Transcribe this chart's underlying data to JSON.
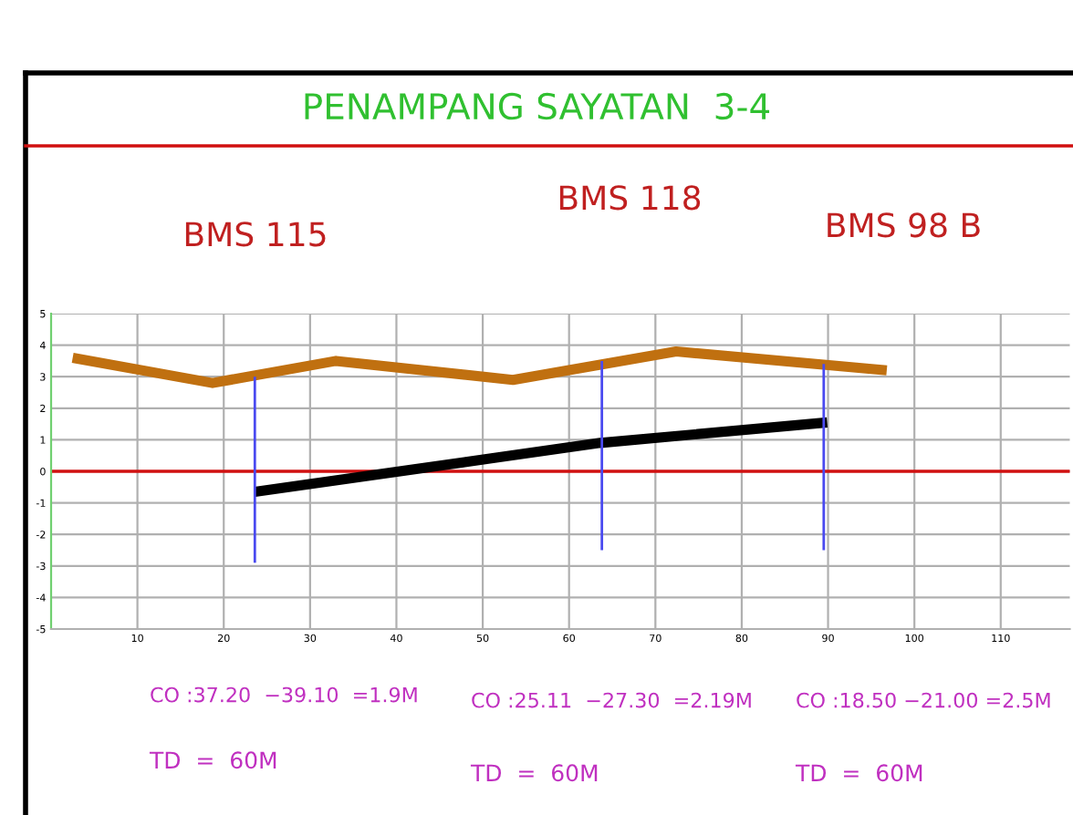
{
  "chart_data": {
    "type": "line",
    "title": "PENAMPANG SAYATAN  3-4",
    "x": [
      2.5,
      18.7,
      33,
      53.5,
      72.4,
      96.8
    ],
    "series": [
      {
        "color": "#c07010",
        "values": [
          3.6,
          2.8,
          3.5,
          2.9,
          3.8,
          3.2
        ]
      },
      {
        "color": "#000000",
        "x": [
          23.6,
          63.6,
          89.9
        ],
        "values": [
          -0.65,
          0.9,
          1.55
        ]
      },
      {
        "color": "#4a4af0",
        "x": [
          23.6,
          23.6
        ],
        "values": [
          3.0,
          -2.9
        ]
      },
      {
        "color": "#4a4af0",
        "x": [
          63.8,
          63.8
        ],
        "values": [
          3.5,
          -2.5
        ]
      },
      {
        "color": "#4a4af0",
        "x": [
          89.5,
          89.5
        ],
        "values": [
          3.4,
          -2.5
        ]
      }
    ],
    "xlim": [
      0,
      118
    ],
    "xticks": [
      10,
      20,
      30,
      40,
      50,
      60,
      70,
      80,
      90,
      100,
      110
    ],
    "ylim": [
      -5,
      5
    ],
    "yticks": [
      -5,
      -4,
      -3,
      -2,
      -1,
      0,
      1,
      2,
      3,
      4,
      5
    ],
    "grid": true,
    "legend": false,
    "marker": "none",
    "line_style": "solid",
    "ref_lines": [
      {
        "axis": "y",
        "value": 0,
        "color": "#d01010"
      }
    ],
    "annotations": [
      "BMS 115",
      "BMS 118",
      "BMS 98 B",
      "CO :37.20  −39.10  =1.9M",
      "TD  =  60M",
      "CO :25.11  −27.30  =2.19M",
      "TD  =  60M",
      "CO :18.50 −21.00 =2.5M",
      "TD  =  60M"
    ]
  }
}
